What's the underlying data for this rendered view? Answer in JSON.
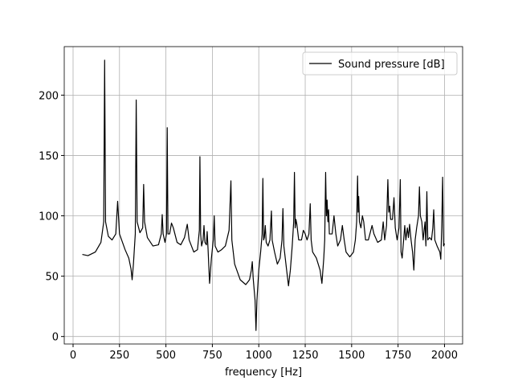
{
  "chart_data": {
    "type": "line",
    "xlabel": "frequency [Hz]",
    "xlim": [
      -47.5,
      2097.5
    ],
    "ylim": [
      -6.2,
      240.2
    ],
    "xticks": [
      0,
      250,
      500,
      750,
      1000,
      1250,
      1500,
      1750,
      2000
    ],
    "yticks": [
      0,
      50,
      100,
      150,
      200
    ],
    "grid": true,
    "legend": "upper right",
    "series": [
      {
        "name": "Sound pressure [dB]",
        "color": "#000000",
        "x": [
          50,
          80,
          120,
          150,
          165,
          170,
          175,
          190,
          210,
          230,
          240,
          250,
          280,
          300,
          312,
          318,
          325,
          335,
          340,
          345,
          360,
          375,
          380,
          385,
          400,
          430,
          460,
          475,
          480,
          485,
          495,
          503,
          507,
          511,
          520,
          530,
          540,
          560,
          580,
          600,
          615,
          625,
          650,
          670,
          680,
          683,
          687,
          692,
          700,
          705,
          710,
          718,
          722,
          727,
          735,
          745,
          755,
          760,
          765,
          780,
          800,
          820,
          840,
          850,
          855,
          870,
          900,
          930,
          950,
          960,
          965,
          970,
          980,
          985,
          990,
          1000,
          1010,
          1018,
          1022,
          1026,
          1030,
          1035,
          1040,
          1050,
          1060,
          1068,
          1072,
          1085,
          1100,
          1115,
          1125,
          1130,
          1135,
          1150,
          1160,
          1170,
          1180,
          1188,
          1192,
          1196,
          1200,
          1205,
          1215,
          1230,
          1240,
          1250,
          1260,
          1270,
          1277,
          1282,
          1290,
          1310,
          1330,
          1340,
          1350,
          1355,
          1360,
          1364,
          1368,
          1372,
          1376,
          1380,
          1395,
          1405,
          1415,
          1425,
          1440,
          1450,
          1460,
          1470,
          1490,
          1510,
          1520,
          1527,
          1532,
          1535,
          1538,
          1542,
          1550,
          1558,
          1565,
          1575,
          1590,
          1610,
          1620,
          1640,
          1660,
          1670,
          1678,
          1688,
          1695,
          1700,
          1705,
          1710,
          1720,
          1728,
          1735,
          1745,
          1755,
          1762,
          1766,
          1772,
          1780,
          1786,
          1792,
          1800,
          1806,
          1812,
          1820,
          1828,
          1835,
          1842,
          1850,
          1860,
          1865,
          1870,
          1878,
          1885,
          1895,
          1900,
          1905,
          1910,
          1920,
          1930,
          1937,
          1942,
          1948,
          1960,
          1975,
          1980,
          1985,
          1990,
          1995,
          2000
        ],
        "values": [
          68,
          67,
          70,
          78,
          95,
          229,
          95,
          83,
          80,
          85,
          112,
          85,
          72,
          65,
          56,
          47,
          60,
          85,
          196,
          95,
          86,
          90,
          126,
          95,
          82,
          75,
          76,
          85,
          101,
          85,
          78,
          85,
          173,
          85,
          85,
          94,
          90,
          78,
          76,
          82,
          93,
          80,
          70,
          72,
          88,
          149,
          85,
          75,
          80,
          92,
          78,
          76,
          87,
          72,
          44,
          65,
          80,
          100,
          75,
          70,
          72,
          75,
          88,
          129,
          80,
          60,
          47,
          43,
          47,
          55,
          62,
          48,
          30,
          5,
          30,
          55,
          70,
          85,
          131,
          80,
          82,
          92,
          78,
          75,
          80,
          104,
          80,
          70,
          60,
          65,
          80,
          106,
          75,
          55,
          42,
          55,
          75,
          95,
          136,
          90,
          97,
          93,
          80,
          80,
          88,
          85,
          80,
          85,
          110,
          80,
          70,
          65,
          55,
          44,
          65,
          80,
          136,
          100,
          113,
          95,
          105,
          85,
          85,
          100,
          85,
          75,
          80,
          92,
          80,
          70,
          66,
          70,
          80,
          95,
          133,
          103,
          116,
          95,
          90,
          100,
          95,
          80,
          80,
          92,
          85,
          78,
          80,
          95,
          80,
          92,
          130,
          103,
          108,
          97,
          97,
          115,
          90,
          80,
          90,
          130,
          70,
          65,
          80,
          92,
          80,
          90,
          82,
          93,
          80,
          70,
          55,
          80,
          90,
          100,
          124,
          100,
          95,
          80,
          95,
          75,
          120,
          80,
          82,
          80,
          90,
          105,
          80,
          75,
          70,
          64,
          90,
          132,
          75,
          77
        ]
      }
    ]
  }
}
